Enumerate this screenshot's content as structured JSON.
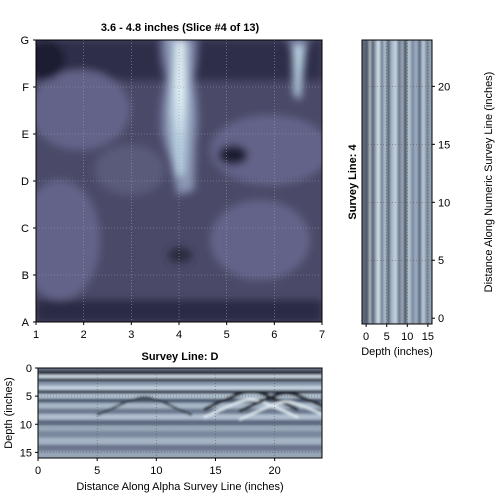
{
  "chart_data": [
    {
      "type": "heatmap",
      "title": "3.6 - 4.8 inches  (Slice #4 of 13)",
      "x_ticks": [
        "1",
        "2",
        "3",
        "4",
        "5",
        "6",
        "7"
      ],
      "y_ticks": [
        "A",
        "B",
        "C",
        "D",
        "E",
        "F",
        "G"
      ],
      "xlim": [
        1,
        7
      ],
      "ylim": [
        "A",
        "G"
      ],
      "grid": true,
      "colormap": [
        "#1c1c30",
        "#2f2f4a",
        "#4a4a68",
        "#64648a",
        "#8a96b4",
        "#b7cfe0",
        "#e9f4f8"
      ],
      "hotspots": [
        {
          "x": 4.0,
          "y": 5.9,
          "level": 1.0
        },
        {
          "x": 4.1,
          "y": 6.9,
          "level": 0.9
        },
        {
          "x": 4.0,
          "y": 4.4,
          "level": 0.55
        },
        {
          "x": 6.5,
          "y": 6.8,
          "level": 0.5
        }
      ]
    },
    {
      "type": "heatmap",
      "ylabel": "Survey Line: 4",
      "xlabel": "Depth (inches)",
      "right_label": "Distance Along Numeric Survey Line (inches)",
      "x_ticks": [
        "0",
        "5",
        "10",
        "15"
      ],
      "y_ticks": [
        "0",
        "5",
        "10",
        "15",
        "20"
      ],
      "xlim": [
        -1,
        16
      ],
      "ylim": [
        -0.5,
        24
      ]
    },
    {
      "type": "heatmap",
      "title": "Survey Line: D",
      "ylabel": "Depth (inches)",
      "xlabel": "Distance Along Alpha Survey Line (inches)",
      "x_ticks": [
        "0",
        "5",
        "10",
        "15",
        "20"
      ],
      "y_ticks": [
        "0",
        "5",
        "10",
        "15"
      ],
      "xlim": [
        0,
        24
      ],
      "ylim": [
        16,
        0
      ]
    }
  ]
}
